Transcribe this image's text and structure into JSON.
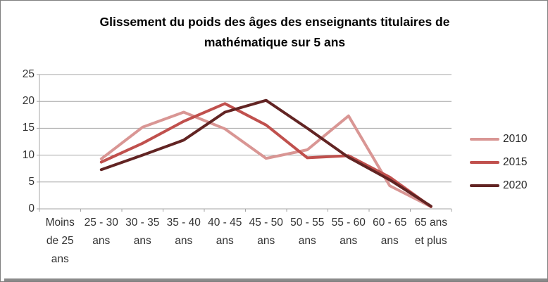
{
  "title": "Glissement du poids des âges des enseignants titulaires de mathématique sur 5 ans",
  "chart_data": {
    "type": "line",
    "categories": [
      "Moins\nde 25\nans",
      "25 - 30\nans",
      "30 - 35\nans",
      "35 - 40\nans",
      "40 - 45\nans",
      "45 - 50\nans",
      "50 - 55\nans",
      "55 - 60\nans",
      "60 - 65\nans",
      "65 ans\net plus"
    ],
    "series": [
      {
        "name": "2010",
        "color": "#D99694",
        "values": [
          null,
          9.3,
          15.2,
          18.0,
          14.9,
          9.4,
          11.0,
          17.3,
          4.3,
          0.4
        ]
      },
      {
        "name": "2015",
        "color": "#C0504D",
        "values": [
          null,
          8.7,
          12.2,
          16.3,
          19.6,
          15.6,
          9.5,
          9.9,
          5.9,
          0.4
        ]
      },
      {
        "name": "2020",
        "color": "#622423",
        "values": [
          null,
          7.3,
          10.0,
          12.8,
          18.0,
          20.2,
          15.0,
          9.6,
          5.4,
          0.5
        ]
      }
    ],
    "ylim": [
      0,
      25
    ],
    "yticks": [
      25,
      20,
      15,
      10,
      5,
      0
    ],
    "grid": true,
    "legend_position": "right",
    "xlabel": "",
    "ylabel": ""
  },
  "colors": {
    "grid": "#a6a6a6",
    "axis": "#a6a6a6",
    "tick_text": "#333333",
    "title_text": "#000000",
    "border": "#7f7f7f",
    "bottom_bar": "#8a8a8a"
  }
}
